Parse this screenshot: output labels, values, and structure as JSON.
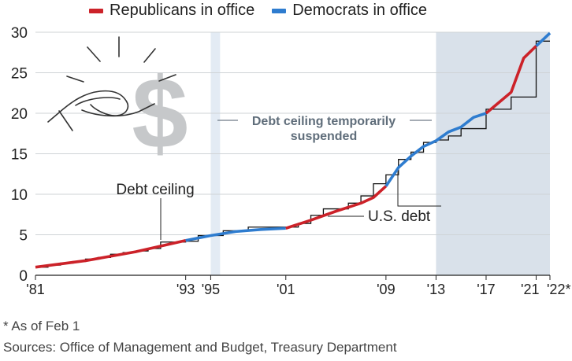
{
  "legend": {
    "items": [
      {
        "label": "Republicans in office",
        "color": "#cc2229"
      },
      {
        "label": "Democrats in office",
        "color": "#2e7ccf"
      }
    ]
  },
  "chart_data": {
    "type": "line",
    "title": "",
    "xlabel": "",
    "ylabel": "",
    "xlim": [
      1981,
      2022.1
    ],
    "ylim": [
      0,
      30
    ],
    "grid": true,
    "y_ticks": [
      "0",
      "5",
      "10",
      "15",
      "20",
      "25",
      "30"
    ],
    "x_tick_labels": [
      {
        "x": 1981,
        "label": "'81"
      },
      {
        "x": 1993,
        "label": "'93"
      },
      {
        "x": 1995,
        "label": "'95"
      },
      {
        "x": 2001,
        "label": "'01"
      },
      {
        "x": 2009,
        "label": "'09"
      },
      {
        "x": 2013,
        "label": "'13"
      },
      {
        "x": 2017,
        "label": "'17"
      },
      {
        "x": 2021,
        "label": "'21"
      },
      {
        "x": 2022.1,
        "label": "'22*"
      }
    ],
    "series": [
      {
        "name": "Republicans in office",
        "color": "#cc2229",
        "x": [
          1981,
          1985,
          1989,
          1993
        ],
        "values": [
          1.0,
          1.8,
          2.9,
          4.3
        ]
      },
      {
        "name": "Democrats in office",
        "color": "#2e7ccf",
        "x": [
          1993,
          1995,
          1997,
          1999,
          2001
        ],
        "values": [
          4.3,
          4.9,
          5.4,
          5.65,
          5.8
        ]
      },
      {
        "name": "Republicans in office",
        "color": "#cc2229",
        "x": [
          2001,
          2003,
          2005,
          2007,
          2008,
          2009
        ],
        "values": [
          5.8,
          6.8,
          7.9,
          8.9,
          9.6,
          11.0
        ]
      },
      {
        "name": "Democrats in office",
        "color": "#2e7ccf",
        "x": [
          2009,
          2010,
          2011,
          2012,
          2013,
          2014,
          2015,
          2016,
          2017
        ],
        "values": [
          11.0,
          13.3,
          14.7,
          15.9,
          16.6,
          17.7,
          18.3,
          19.5,
          20.0
        ]
      },
      {
        "name": "Republicans in office",
        "color": "#cc2229",
        "x": [
          2017,
          2018,
          2019,
          2020,
          2021
        ],
        "values": [
          20.0,
          21.3,
          22.6,
          26.8,
          28.3
        ]
      },
      {
        "name": "Democrats in office",
        "color": "#2e7ccf",
        "x": [
          2021,
          2022.1
        ],
        "values": [
          28.3,
          29.9
        ]
      }
    ],
    "debt_ceiling": {
      "name": "Debt ceiling",
      "x": [
        1981,
        1982,
        1983,
        1984,
        1985,
        1986,
        1987,
        1988,
        1989,
        1990,
        1991,
        1992,
        1993,
        1994,
        1996,
        1998,
        2000,
        2002,
        2003,
        2004,
        2005,
        2006,
        2007,
        2008,
        2009,
        2010,
        2011,
        2012,
        2013,
        2014,
        2015,
        2016,
        2017,
        2018,
        2019,
        2020,
        2021,
        2022.1
      ],
      "values": [
        1.0,
        1.25,
        1.5,
        1.7,
        2.0,
        2.2,
        2.6,
        2.8,
        3.0,
        3.3,
        4.1,
        4.1,
        4.2,
        4.9,
        5.5,
        5.95,
        5.95,
        6.4,
        7.4,
        8.2,
        8.2,
        8.9,
        9.8,
        11.3,
        12.4,
        14.3,
        15.2,
        16.4,
        16.7,
        17.2,
        18.1,
        18.1,
        20.5,
        20.5,
        22.0,
        22.0,
        28.9,
        28.9
      ]
    },
    "suspended_periods": [
      {
        "from": 1995.0,
        "to": 1995.75
      },
      {
        "from": 2013.0,
        "to": 2022.1
      }
    ],
    "annotations": {
      "debt_ceiling": "Debt ceiling",
      "us_debt": "U.S. debt",
      "suspended_line1": "Debt ceiling temporarily",
      "suspended_line2": "suspended"
    }
  },
  "footnotes": {
    "asterisk": "* As of Feb 1",
    "sources": "Sources: Office of Management and Budget, Treasury Department"
  },
  "icon": "hand-with-dollar-icon"
}
